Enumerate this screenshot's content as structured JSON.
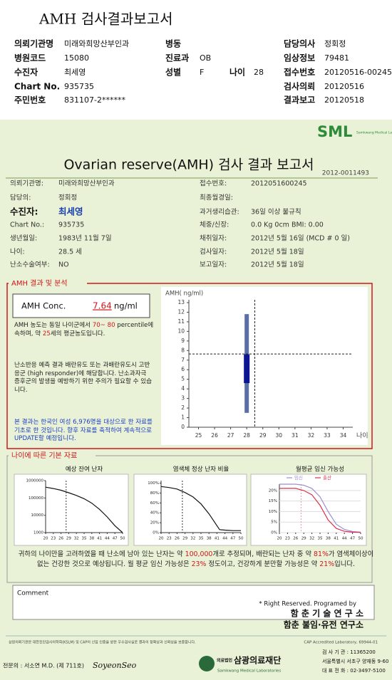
{
  "header": {
    "title": "AMH 검사결과보고서"
  },
  "top_info": [
    {
      "label": "의뢰기관명",
      "value": "미래와희망산부인과"
    },
    {
      "label": "병동"
    },
    {
      "label": "담당의사",
      "value": "정회정"
    },
    {
      "label": "병원코드",
      "value": "15080"
    },
    {
      "label": "진료과",
      "value": "OB"
    },
    {
      "label": "임상정보",
      "value": "79481"
    },
    {
      "label": "수진자",
      "value": "최세영"
    },
    {
      "label": "성별",
      "value": "F"
    },
    {
      "label": "나이",
      "value": "28"
    },
    {
      "label": "접수번호",
      "value": "20120516-00245"
    },
    {
      "label": "Chart No.",
      "value": "935735"
    },
    {
      "label": "검사의뢰",
      "value": "20120516"
    },
    {
      "label": "주민번호",
      "value": "831107-2******"
    },
    {
      "label": "결과보고",
      "value": "20120518"
    }
  ],
  "report": {
    "logo": "SML",
    "logo_sub": "Samkwang Medical Laboratories",
    "title": "Ovarian reserve(AMH) 검사 결과 보고서",
    "number": "2012-0011493"
  },
  "patient": {
    "left": [
      {
        "label": "의뢰기관명:",
        "value": "미래와희망산부인과"
      },
      {
        "label": "담당의:",
        "value": "정회정"
      },
      {
        "label": "수진자:",
        "value": "최세영"
      },
      {
        "label": "Chart No.:",
        "value": "935735"
      },
      {
        "label": "생년월일:",
        "value": "1983년 11월 7일"
      },
      {
        "label": "나이:",
        "value": "28.5 세"
      },
      {
        "label": "난소수술여부:",
        "value": "NO"
      }
    ],
    "right": [
      {
        "label": "접수번호:",
        "value": "2012051600245"
      },
      {
        "label": "최종월경일:"
      },
      {
        "label": "과거생리습관:",
        "value": "36일 이상 불규칙"
      },
      {
        "label": "체중/신장:",
        "value": "0.0 Kg      0cm   BMI:  0.00"
      },
      {
        "label": "채취일자:",
        "value": "2012년 5월 16일   (MCD # 0 일)"
      },
      {
        "label": "검사일자:",
        "value": "2012년 5월 18일"
      },
      {
        "label": "보고일자:",
        "value": "2012년 5월 18일"
      }
    ]
  },
  "amh": {
    "section_title": "AMH 결과 및 분석",
    "conc_label": "AMH Conc.",
    "conc_value": "7.64",
    "conc_unit": "ng/ml",
    "p1": [
      "AMH 농도는 동일 나이군에서 ",
      "70~ 80",
      " percentile에 속하며, 약 ",
      "25",
      "세의 평균농도입니다."
    ],
    "p2": "난소반응 예측 결과 배란유도 또는 과배란유도시 고반응군 (high responder)에 해당합니다. 난소과자극 증후군의 발생을 예방하기 위한 주의가 필요할 수 있습니다.",
    "p3": "본 결과는 한국인 여성 6,976명을 대상으로 한 자료를 기초로 한 것입니다. 향후 자료를 축적하여 계속적으로 UPDATE할 예정입니다."
  },
  "basic": {
    "section_title": "나이에 따른 기본 자료"
  },
  "conclusion": [
    "귀하의 나이만을 고려하였을 때 난소에 남아 있는 난자는 약 ",
    "100,000",
    "개로 추정되며, 배란되는 난자 중 약 ",
    "81%",
    "가 염색체이상이 없는 건강한 것으로 예상됩니다. 월 평균 임신 가능성은 ",
    "23%",
    " 정도이고, 건강하게 분만할 가능성은 약 ",
    "21%",
    "입니다."
  ],
  "comment": {
    "label": "Comment"
  },
  "credit": [
    "* Right Reserved. Programed by",
    "함 춘 기 술 연 구 소",
    "함춘 불임·유전 연구소"
  ],
  "footer": {
    "notice": "상원의뢰기관은 대한진단검사의학회(KSLM) 및 CAP의 신임 인증을 받은 우수검사실로 결과의 정확성과 신뢰성을 보증합니다.",
    "cap": "CAP Accredited Laboratory,  69944-01",
    "doctor": "전문의 : 서소연 M.D. (제 711호)",
    "signature": "SoyeonSeo",
    "org_type": "의료법인",
    "org": "삼광의료재단",
    "org_en": "Samkwang Medical Laboratories",
    "address": [
      "검 사 기 관 : 11365200",
      "서울특별시 서초구 양재동 9-60",
      "대 표 전 화 : 02-3497-5100"
    ]
  },
  "chart_data": [
    {
      "type": "box",
      "y_label": "AMH( ng/ml)",
      "x_label": "나이",
      "boxes": [
        {
          "x": 28,
          "low": 1.5,
          "q1": 4.6,
          "q3": 7.6,
          "high": 11.8
        }
      ],
      "whisker_color": "#5b6fa6",
      "box_color": "#0b1690",
      "marker": {
        "x": 28.5,
        "y": 7.64
      },
      "xlim": [
        24.4,
        34.6
      ],
      "xticks": [
        25,
        26,
        27,
        28,
        29,
        30,
        31,
        32,
        33,
        34
      ],
      "ylim": [
        0,
        13
      ],
      "yticks": [
        0,
        1,
        2,
        3,
        4,
        5,
        6,
        7,
        8,
        9,
        10,
        11,
        12,
        13
      ]
    },
    {
      "type": "line",
      "title": "예상 잔여 난자",
      "log": true,
      "grid": false,
      "marker_x": 28,
      "x": [
        20,
        23,
        26,
        29,
        32,
        35,
        38,
        41,
        44,
        47,
        50
      ],
      "series": [
        {
          "color": "#111111",
          "values": [
            420000,
            350000,
            280000,
            200000,
            140000,
            90000,
            50000,
            22000,
            8000,
            2500,
            1000
          ]
        }
      ],
      "xlim": [
        20,
        50
      ],
      "xticks": [
        20,
        23,
        26,
        29,
        32,
        35,
        38,
        41,
        44,
        47,
        50
      ],
      "ylim": [
        1000,
        1000000
      ],
      "yticks": [
        1000,
        10000,
        100000,
        1000000
      ]
    },
    {
      "type": "line",
      "title": "염색체 정상 난자 비율",
      "log": false,
      "grid": false,
      "marker_x": 28,
      "x": [
        20,
        23,
        26,
        29,
        32,
        35,
        38,
        41,
        42,
        44,
        47,
        50
      ],
      "series": [
        {
          "color": "#111111",
          "values": [
            93,
            91,
            88,
            81,
            72,
            58,
            38,
            14,
            6,
            5,
            4,
            4
          ]
        }
      ],
      "xlim": [
        20,
        50
      ],
      "xticks": [
        20,
        23,
        26,
        29,
        32,
        35,
        38,
        41,
        44,
        47,
        50
      ],
      "ylim": [
        0,
        105
      ],
      "yticks": [
        {
          "value": 0,
          "label": "0%"
        },
        {
          "value": 20,
          "label": "20%"
        },
        {
          "value": 40,
          "label": "40%"
        },
        {
          "value": 60,
          "label": "60%"
        },
        {
          "value": 80,
          "label": "80%"
        },
        {
          "value": 100,
          "label": "100%"
        }
      ]
    },
    {
      "type": "line",
      "title": "월평균 임신 가능성",
      "log": false,
      "grid": true,
      "marker_x": 28,
      "x": [
        20,
        23,
        26,
        29,
        32,
        35,
        38,
        41,
        44,
        47,
        50
      ],
      "series": [
        {
          "name": "임신",
          "color": "#9a8fd6",
          "values": [
            23,
            23,
            23,
            22.5,
            21,
            17,
            10,
            4,
            1.5,
            0.5,
            0.2
          ]
        },
        {
          "name": "출산",
          "color": "#d8314f",
          "values": [
            21,
            21,
            21,
            20,
            18,
            13,
            6,
            2,
            0.6,
            0.2,
            0.1
          ]
        }
      ],
      "xlim": [
        20,
        50
      ],
      "xticks": [
        20,
        23,
        26,
        29,
        32,
        35,
        38,
        41,
        44,
        47,
        50
      ],
      "ylim": [
        0,
        23
      ],
      "yticks": [
        {
          "value": 0,
          "label": "0%"
        },
        {
          "value": 5,
          "label": "5%"
        },
        {
          "value": 10,
          "label": "10%"
        },
        {
          "value": 15,
          "label": "15%"
        },
        {
          "value": 20,
          "label": "20%"
        }
      ]
    }
  ]
}
